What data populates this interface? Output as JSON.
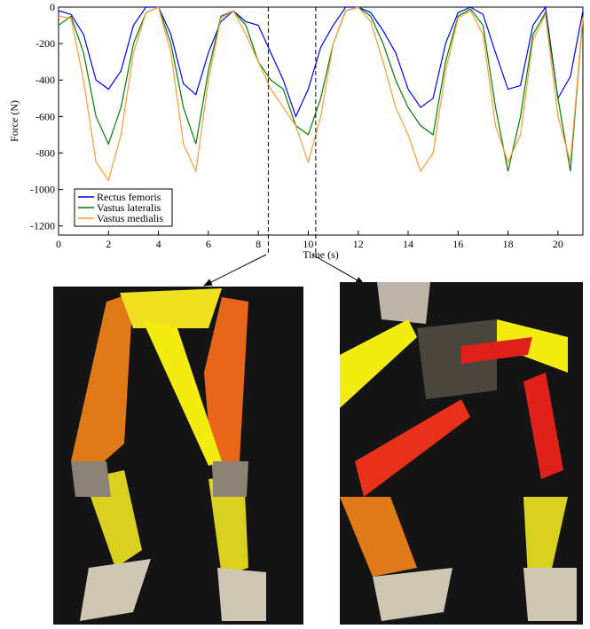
{
  "chart_data": {
    "type": "line",
    "y_label": "Force (N)",
    "x_label": "Time (s)",
    "x": [
      0,
      0.5,
      1,
      1.5,
      2,
      2.5,
      3,
      3.5,
      4,
      4.5,
      5,
      5.5,
      6,
      6.5,
      7,
      7.5,
      8,
      8.5,
      9,
      9.5,
      10,
      10.5,
      11,
      11.5,
      12,
      12.5,
      13,
      13.5,
      14,
      14.5,
      15,
      15.5,
      16,
      16.5,
      17,
      17.5,
      18,
      18.5,
      19,
      19.5,
      20,
      20.5,
      21
    ],
    "series": [
      {
        "name": "Rectus femoris",
        "color": "#0000ff",
        "values": [
          -20,
          -40,
          -150,
          -400,
          -450,
          -350,
          -100,
          0,
          0,
          -150,
          -420,
          -480,
          -250,
          -80,
          -20,
          -80,
          -100,
          -250,
          -400,
          -600,
          -450,
          -220,
          -100,
          0,
          0,
          -30,
          -130,
          -250,
          -450,
          -550,
          -500,
          -200,
          -30,
          0,
          -40,
          -250,
          -450,
          -430,
          -100,
          0,
          -500,
          -380,
          -20
        ]
      },
      {
        "name": "Vastus lateralis",
        "color": "#008000",
        "values": [
          -100,
          -50,
          -250,
          -600,
          -750,
          -550,
          -200,
          -30,
          0,
          -200,
          -550,
          -750,
          -350,
          -50,
          -20,
          -100,
          -300,
          -400,
          -450,
          -650,
          -700,
          -500,
          -200,
          -20,
          0,
          -50,
          -200,
          -400,
          -550,
          -650,
          -700,
          -300,
          -50,
          -10,
          -100,
          -550,
          -900,
          -600,
          -150,
          -30,
          -500,
          -900,
          -50
        ]
      },
      {
        "name": "Vastus medialis",
        "color": "#ff9933",
        "values": [
          -50,
          -60,
          -400,
          -850,
          -950,
          -700,
          -250,
          -30,
          0,
          -250,
          -750,
          -900,
          -400,
          -60,
          -20,
          -150,
          -300,
          -450,
          -550,
          -650,
          -850,
          -600,
          -200,
          -20,
          0,
          -80,
          -300,
          -550,
          -700,
          -900,
          -800,
          -350,
          -60,
          -20,
          -150,
          -650,
          -850,
          -700,
          -180,
          -40,
          -600,
          -850,
          -60
        ]
      }
    ],
    "xlim": [
      0,
      21
    ],
    "ylim": [
      -1250,
      0
    ],
    "xticks": [
      0,
      2,
      4,
      6,
      8,
      10,
      12,
      14,
      16,
      18,
      20
    ],
    "yticks": [
      0,
      -200,
      -400,
      -600,
      -800,
      -1000,
      -1200
    ],
    "vlines": [
      8.4,
      10.3
    ],
    "legend": "lower-left"
  }
}
